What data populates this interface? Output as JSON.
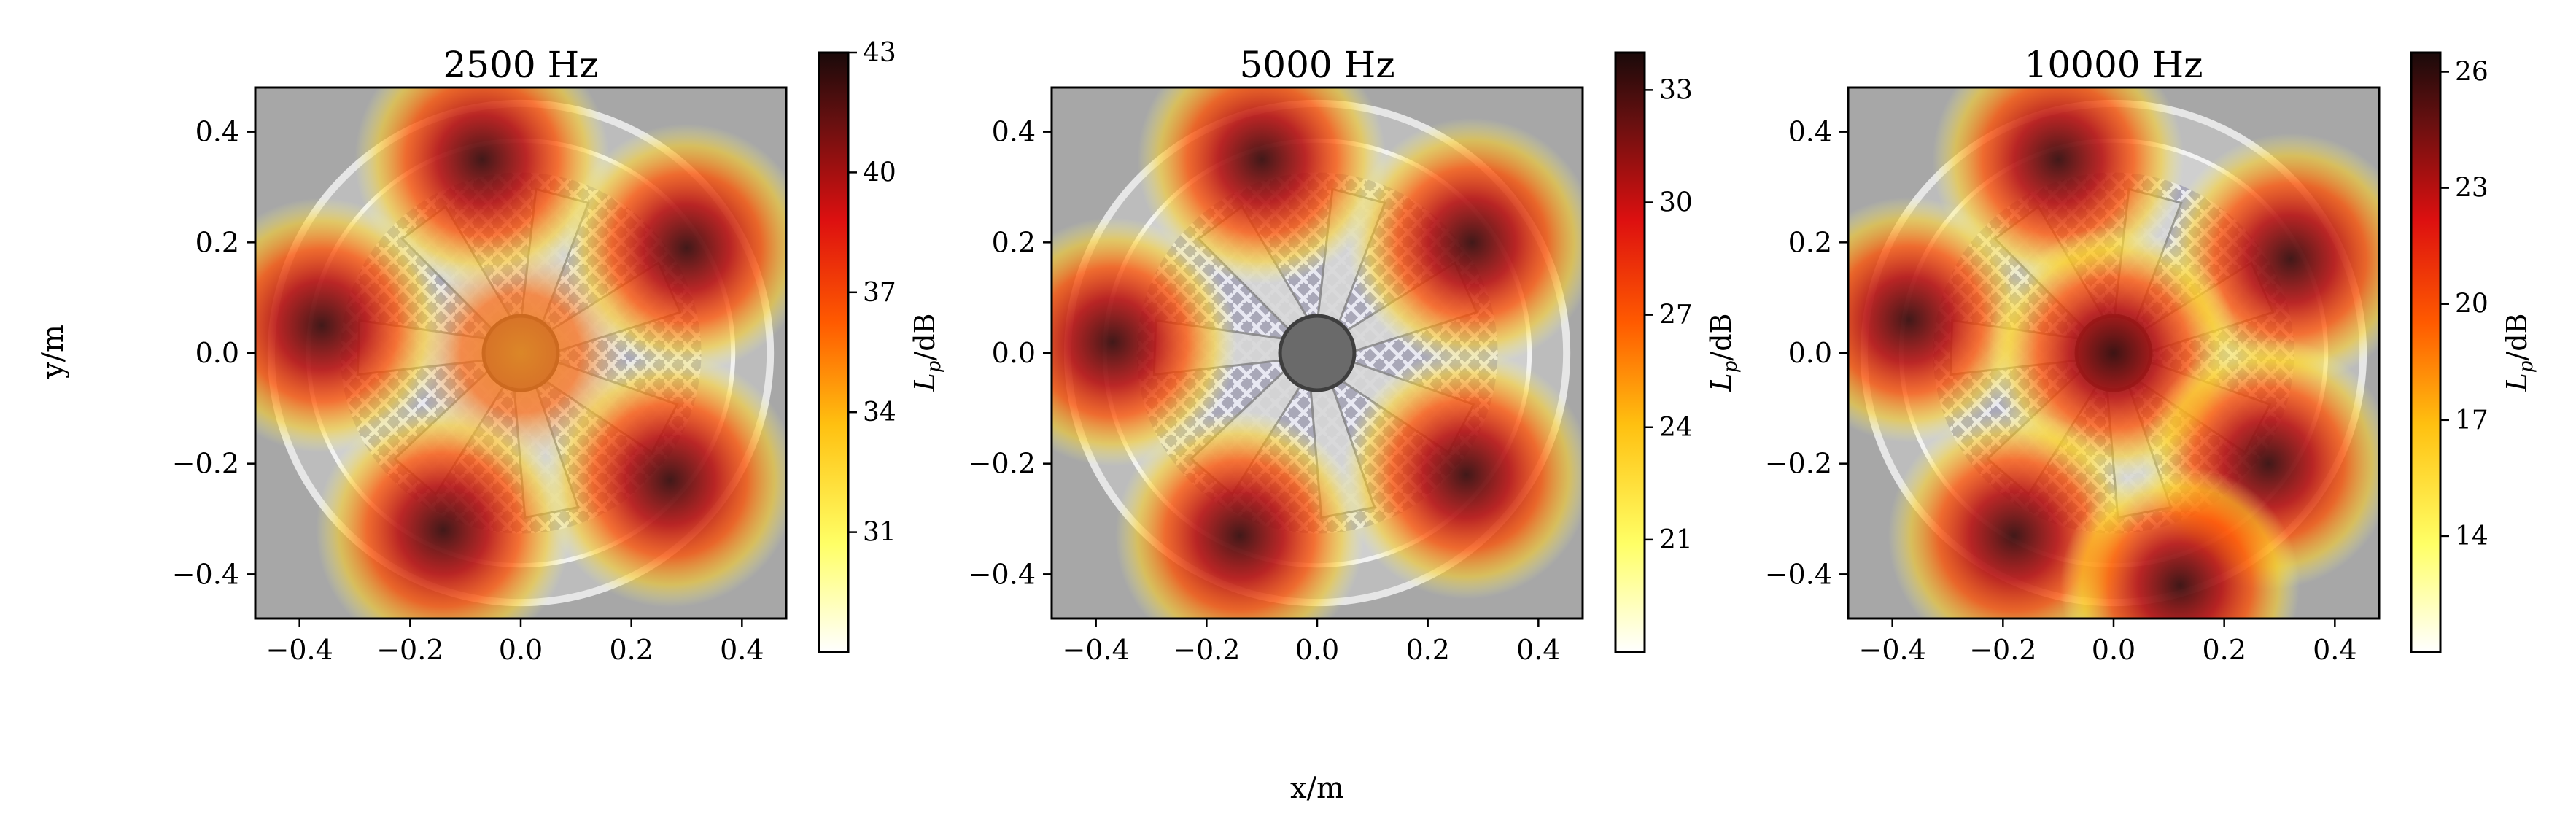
{
  "figure": {
    "xlabel": "x/m",
    "ylabel": "y/m"
  },
  "chart_data": [
    {
      "type": "heatmap",
      "title": "2500 Hz",
      "xlim": [
        -0.48,
        0.48
      ],
      "ylim": [
        -0.48,
        0.48
      ],
      "xticks": [
        -0.4,
        -0.2,
        0.0,
        0.2,
        0.4
      ],
      "xtick_labels": [
        "−0.4",
        "−0.2",
        "0.0",
        "0.2",
        "0.4"
      ],
      "yticks": [
        0.4,
        0.2,
        0.0,
        -0.2,
        -0.4
      ],
      "ytick_labels": [
        "0.4",
        "0.2",
        "0.0",
        "−0.2",
        "−0.4"
      ],
      "colorbar": {
        "label_main": "L",
        "label_sub": "p",
        "label_unit": "/dB",
        "range": [
          28,
          43
        ],
        "ticks": [
          43,
          40,
          37,
          34,
          31
        ],
        "tick_labels": [
          "43",
          "40",
          "37",
          "34",
          "31"
        ]
      },
      "hotspots": [
        {
          "x": -0.07,
          "y": 0.35,
          "level": 43
        },
        {
          "x": 0.3,
          "y": 0.19,
          "level": 42
        },
        {
          "x": -0.36,
          "y": 0.05,
          "level": 43
        },
        {
          "x": 0.27,
          "y": -0.23,
          "level": 43
        },
        {
          "x": -0.14,
          "y": -0.32,
          "level": 43
        },
        {
          "x": 0.0,
          "y": 0.0,
          "level": 37
        }
      ],
      "background_image": "fan-photo"
    },
    {
      "type": "heatmap",
      "title": "5000 Hz",
      "xlim": [
        -0.48,
        0.48
      ],
      "ylim": [
        -0.48,
        0.48
      ],
      "xticks": [
        -0.4,
        -0.2,
        0.0,
        0.2,
        0.4
      ],
      "xtick_labels": [
        "−0.4",
        "−0.2",
        "0.0",
        "0.2",
        "0.4"
      ],
      "yticks": [
        0.4,
        0.2,
        0.0,
        -0.2,
        -0.4
      ],
      "ytick_labels": [
        "0.4",
        "0.2",
        "0.0",
        "−0.2",
        "−0.4"
      ],
      "colorbar": {
        "label_main": "L",
        "label_sub": "p",
        "label_unit": "/dB",
        "range": [
          18,
          34
        ],
        "ticks": [
          33,
          30,
          27,
          24,
          21
        ],
        "tick_labels": [
          "33",
          "30",
          "27",
          "24",
          "21"
        ]
      },
      "hotspots": [
        {
          "x": -0.1,
          "y": 0.35,
          "level": 33
        },
        {
          "x": 0.28,
          "y": 0.2,
          "level": 33
        },
        {
          "x": -0.37,
          "y": 0.02,
          "level": 33
        },
        {
          "x": 0.27,
          "y": -0.22,
          "level": 33
        },
        {
          "x": -0.14,
          "y": -0.33,
          "level": 33
        }
      ],
      "background_image": "fan-photo"
    },
    {
      "type": "heatmap",
      "title": "10000 Hz",
      "xlim": [
        -0.48,
        0.48
      ],
      "ylim": [
        -0.48,
        0.48
      ],
      "xticks": [
        -0.4,
        -0.2,
        0.0,
        0.2,
        0.4
      ],
      "xtick_labels": [
        "−0.4",
        "−0.2",
        "0.0",
        "0.2",
        "0.4"
      ],
      "yticks": [
        0.4,
        0.2,
        0.0,
        -0.2,
        -0.4
      ],
      "ytick_labels": [
        "0.4",
        "0.2",
        "0.0",
        "−0.2",
        "−0.4"
      ],
      "colorbar": {
        "label_main": "L",
        "label_sub": "p",
        "label_unit": "/dB",
        "range": [
          11,
          26.5
        ],
        "ticks": [
          26,
          23,
          20,
          17,
          14
        ],
        "tick_labels": [
          "26",
          "23",
          "20",
          "17",
          "14"
        ]
      },
      "hotspots": [
        {
          "x": -0.1,
          "y": 0.35,
          "level": 26
        },
        {
          "x": 0.32,
          "y": 0.17,
          "level": 26
        },
        {
          "x": -0.37,
          "y": 0.06,
          "level": 25
        },
        {
          "x": 0.0,
          "y": 0.0,
          "level": 26
        },
        {
          "x": 0.28,
          "y": -0.2,
          "level": 26
        },
        {
          "x": -0.18,
          "y": -0.33,
          "level": 26
        },
        {
          "x": 0.12,
          "y": -0.42,
          "level": 24
        }
      ],
      "background_image": "fan-photo"
    }
  ]
}
